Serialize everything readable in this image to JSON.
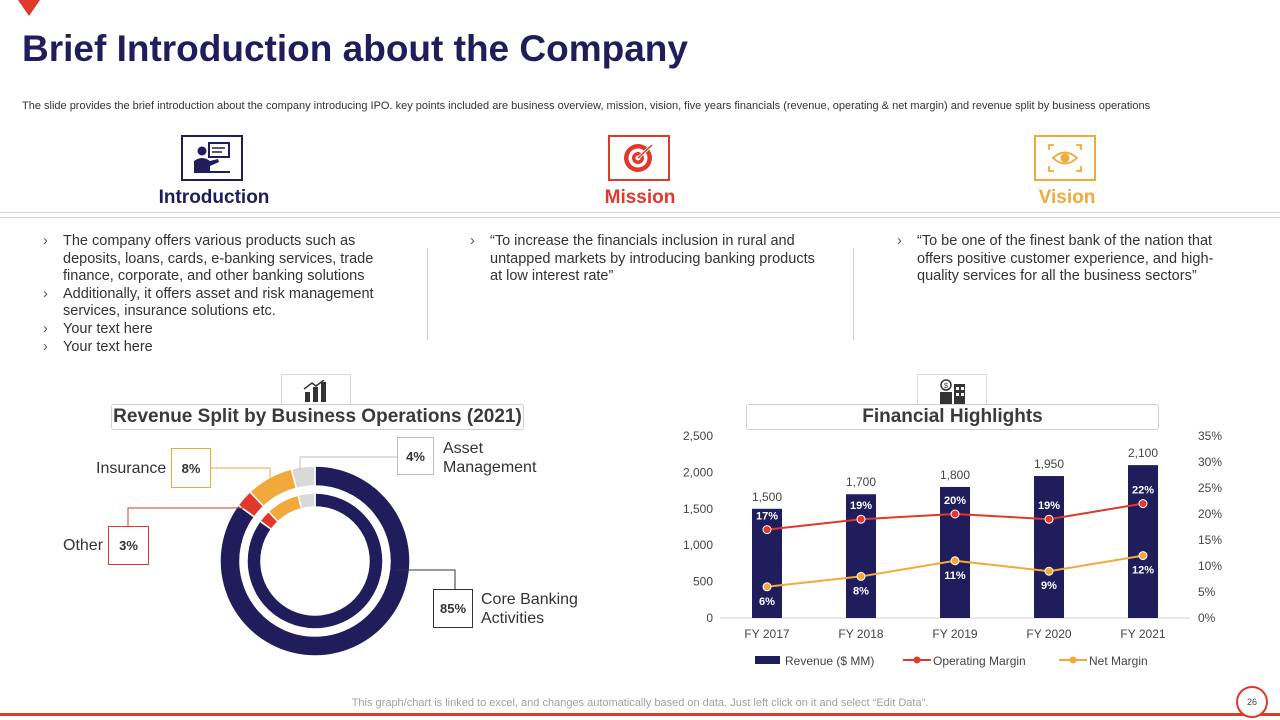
{
  "slide": {
    "title": "Brief Introduction about the Company",
    "subtitle": "The slide provides the brief introduction about the company introducing IPO. key points included are business overview, mission, vision, five years financials (revenue, operating & net margin) and revenue split by business operations",
    "footer_note": "This graph/chart is linked to excel, and changes automatically based on data. Just left click on it and select “Edit Data”.",
    "page_number": "26"
  },
  "columns": [
    {
      "heading": "Introduction",
      "icon": "presenter-icon",
      "color": "#1f1d5c",
      "bullets": [
        "The company offers various products such as deposits, loans, cards, e-banking services, trade finance, corporate, and other banking solutions",
        "Additionally,  it offers asset and risk management services, insurance solutions etc.",
        "Your text here",
        "Your text here"
      ]
    },
    {
      "heading": "Mission",
      "icon": "target-icon",
      "color": "#e0392b",
      "bullets": [
        "“To increase the financials inclusion in rural and untapped markets by introducing banking products at low interest rate”"
      ]
    },
    {
      "heading": "Vision",
      "icon": "eye-icon",
      "color": "#f2a93b",
      "bullets": [
        "“To be one of the finest bank of the nation that offers positive customer experience, and high-quality services for all the business sectors”"
      ]
    }
  ],
  "colors": {
    "navy": "#1f1d5c",
    "red": "#e0392b",
    "orange": "#f2a93b",
    "grey": "#d6d6d6"
  },
  "chart_data": [
    {
      "type": "pie",
      "title": "Revenue Split by Business Operations (2021)",
      "slices": [
        {
          "label": "Core Banking Activities",
          "value": 85,
          "display": "85%",
          "color": "#1f1d5c"
        },
        {
          "label": "Other",
          "value": 3,
          "display": "3%",
          "color": "#e0392b"
        },
        {
          "label": "Insurance",
          "value": 8,
          "display": "8%",
          "color": "#f2a93b"
        },
        {
          "label": "Asset Management",
          "value": 4,
          "display": "4%",
          "color": "#d9d9d9"
        }
      ]
    },
    {
      "type": "bar",
      "title": "Financial Highlights",
      "categories": [
        "FY 2017",
        "FY 2018",
        "FY 2019",
        "FY 2020",
        "FY 2021"
      ],
      "series": [
        {
          "name": "Revenue ($ MM)",
          "kind": "bar",
          "axis": "left",
          "values": [
            1500,
            1700,
            1800,
            1950,
            2100
          ],
          "labels": [
            "1,500",
            "1,700",
            "1,800",
            "1,950",
            "2,100"
          ],
          "color": "#1f1d5c"
        },
        {
          "name": "Operating Margin",
          "kind": "line",
          "axis": "right",
          "values": [
            17,
            19,
            20,
            19,
            22
          ],
          "labels": [
            "17%",
            "19%",
            "20%",
            "19%",
            "22%"
          ],
          "color": "#e0392b"
        },
        {
          "name": "Net Margin",
          "kind": "line",
          "axis": "right",
          "values": [
            6,
            8,
            11,
            9,
            12
          ],
          "labels": [
            "6%",
            "8%",
            "11%",
            "9%",
            "12%"
          ],
          "color": "#f2a93b"
        }
      ],
      "ylim": [
        0,
        2500
      ],
      "y2lim": [
        0,
        35
      ],
      "yticks": [
        "0",
        "500",
        "1,000",
        "1,500",
        "2,000",
        "2,500"
      ],
      "y2ticks": [
        "0%",
        "5%",
        "10%",
        "15%",
        "20%",
        "25%",
        "30%",
        "35%"
      ],
      "legend": "bottom"
    }
  ]
}
